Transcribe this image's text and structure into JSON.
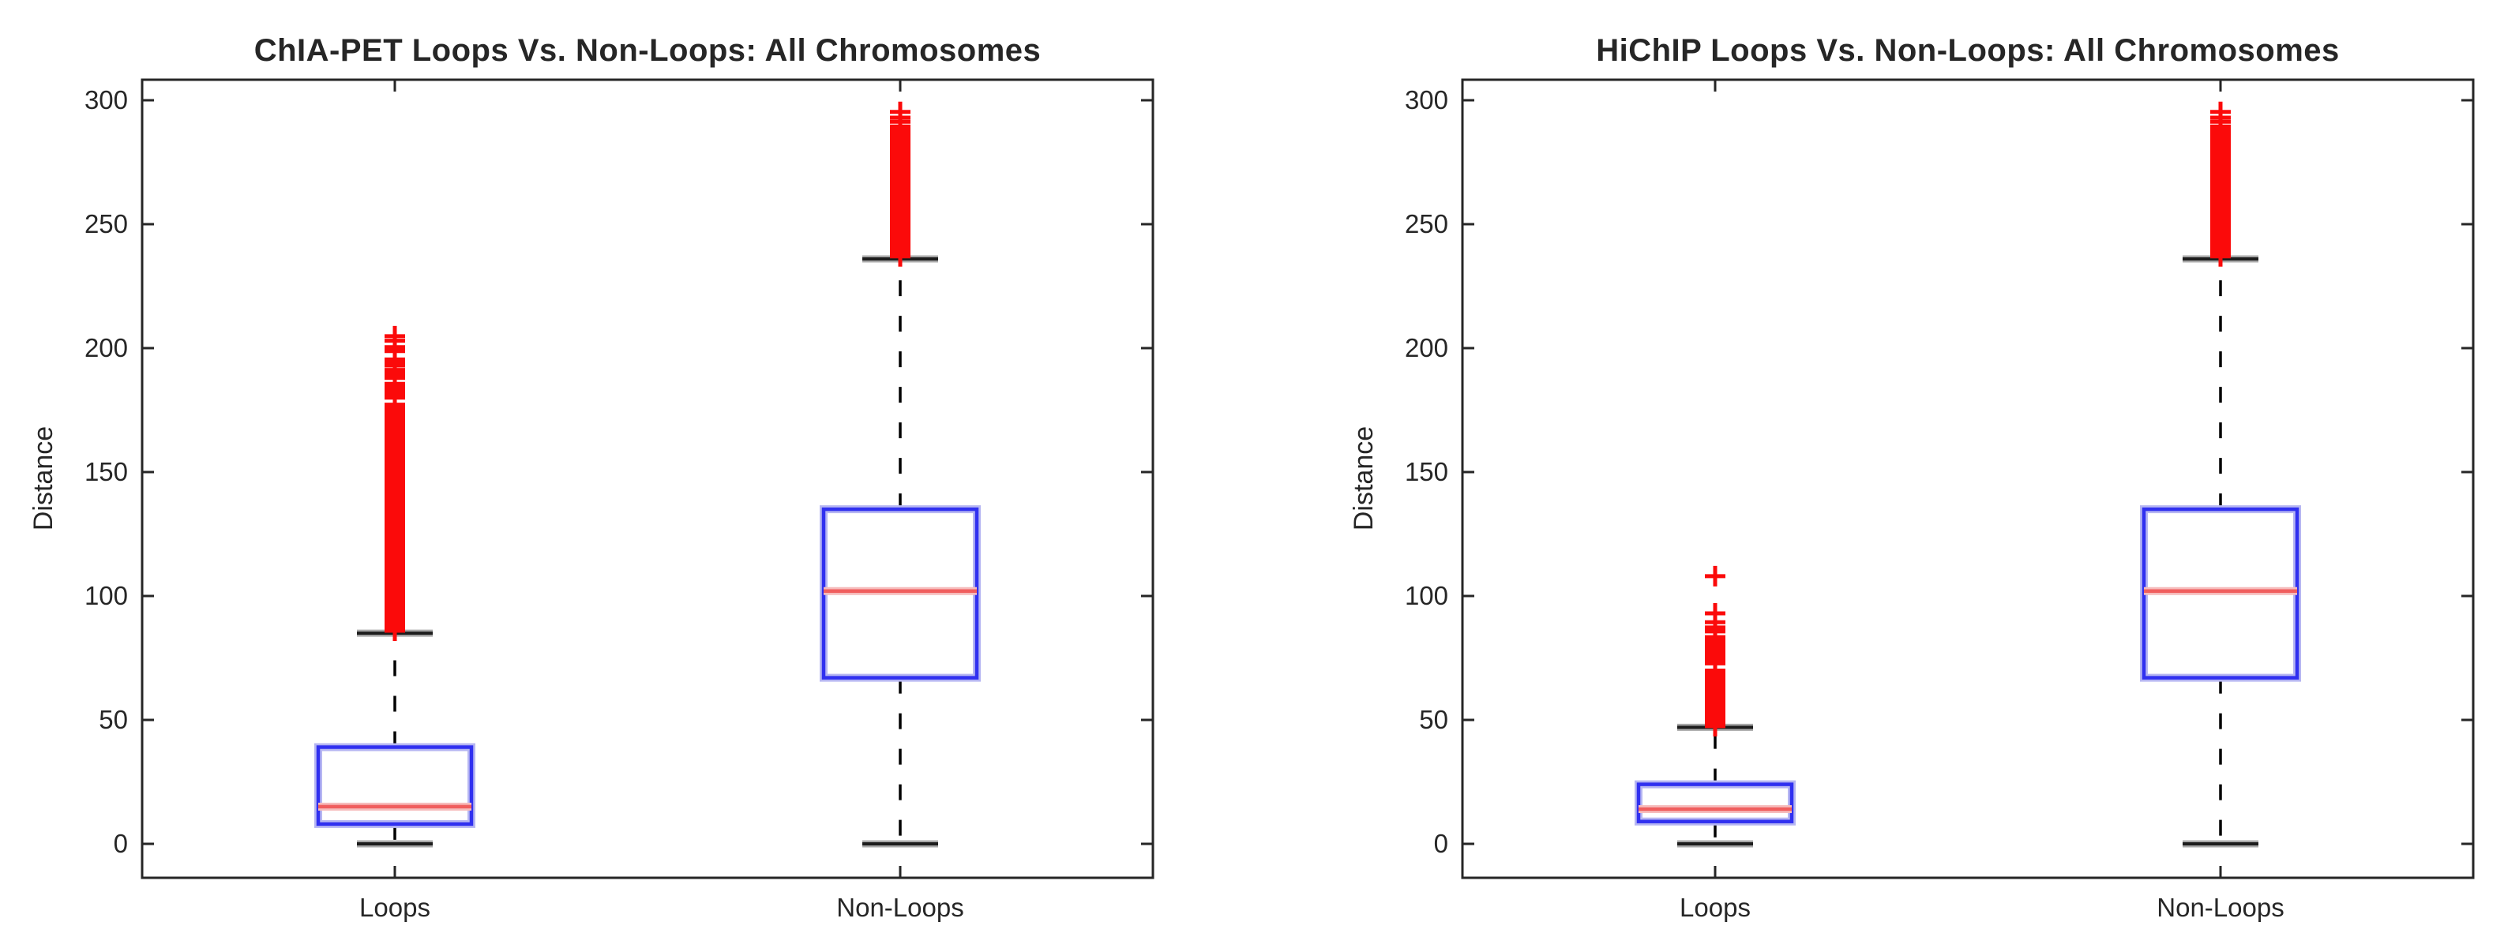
{
  "style": {
    "background": "#ffffff",
    "frame": "#262626",
    "text": "#262626",
    "box": "#3030f0",
    "box_halo": "#b6b6f2",
    "median": "#f05e5e",
    "median_halo": "#f6bcbc",
    "whisker": "#000000",
    "cap": "#1c1c1c",
    "cap_halo": "#a8a8a8",
    "outlier": "#fb0a0a"
  },
  "chart_data": [
    {
      "type": "boxplot",
      "title": "ChIA-PET Loops Vs. Non-Loops: All Chromosomes",
      "ylabel": "Distance",
      "xlabel": "",
      "categories": [
        "Loops",
        "Non-Loops"
      ],
      "yticks": [
        0,
        50,
        100,
        150,
        200,
        250,
        300
      ],
      "ylim": [
        -14,
        308
      ],
      "grid": false,
      "legend": null,
      "boxes": [
        {
          "category": "Loops",
          "whisker_low": 0,
          "q1": 8,
          "median": 15,
          "q3": 39,
          "whisker_high": 85,
          "outlier_ranges": [
            {
              "from": 86,
              "to": 177.5,
              "step": 0.8
            },
            {
              "from": 180,
              "to": 186,
              "step": 0.8
            },
            {
              "from": 188,
              "to": 191.5,
              "step": 0.8
            },
            {
              "from": 193,
              "to": 196,
              "step": 0.8
            },
            {
              "from": 198.8,
              "to": 201,
              "step": 0.8
            }
          ],
          "outliers": [
            203,
            204.8
          ]
        },
        {
          "category": "Non-Loops",
          "whisker_low": 0,
          "q1": 67,
          "median": 102,
          "q3": 135,
          "whisker_high": 236,
          "outlier_ranges": [
            {
              "from": 237,
              "to": 277.5,
              "step": 0.8
            },
            {
              "from": 278.3,
              "to": 280,
              "step": 0.8
            },
            {
              "from": 281,
              "to": 283,
              "step": 0.8
            },
            {
              "from": 284,
              "to": 285.6,
              "step": 0.8
            },
            {
              "from": 287,
              "to": 289.8,
              "step": 0.8
            }
          ],
          "outliers": [
            291.3,
            293,
            295.3
          ]
        }
      ]
    },
    {
      "type": "boxplot",
      "title": "HiChIP Loops Vs. Non-Loops: All Chromosomes",
      "ylabel": "Distance",
      "xlabel": "",
      "categories": [
        "Loops",
        "Non-Loops"
      ],
      "yticks": [
        0,
        50,
        100,
        150,
        200,
        250,
        300
      ],
      "ylim": [
        -14,
        308
      ],
      "grid": false,
      "legend": null,
      "boxes": [
        {
          "category": "Loops",
          "whisker_low": 0,
          "q1": 9,
          "median": 14,
          "q3": 24,
          "whisker_high": 47,
          "outlier_ranges": [
            {
              "from": 47.5,
              "to": 70.5,
              "step": 0.8
            },
            {
              "from": 72.8,
              "to": 75.2,
              "step": 0.8
            },
            {
              "from": 76.2,
              "to": 79.4,
              "step": 0.8
            },
            {
              "from": 80.2,
              "to": 84,
              "step": 0.8
            }
          ],
          "outliers": [
            85.7,
            87.3,
            89.4,
            93,
            108
          ]
        },
        {
          "category": "Non-Loops",
          "whisker_low": 0,
          "q1": 67,
          "median": 102,
          "q3": 135,
          "whisker_high": 236,
          "outlier_ranges": [
            {
              "from": 237,
              "to": 277.5,
              "step": 0.8
            },
            {
              "from": 278.3,
              "to": 280,
              "step": 0.8
            },
            {
              "from": 281,
              "to": 283,
              "step": 0.8
            },
            {
              "from": 284,
              "to": 285.6,
              "step": 0.8
            },
            {
              "from": 287,
              "to": 289.8,
              "step": 0.8
            }
          ],
          "outliers": [
            291.3,
            293,
            295.3
          ]
        }
      ]
    }
  ]
}
